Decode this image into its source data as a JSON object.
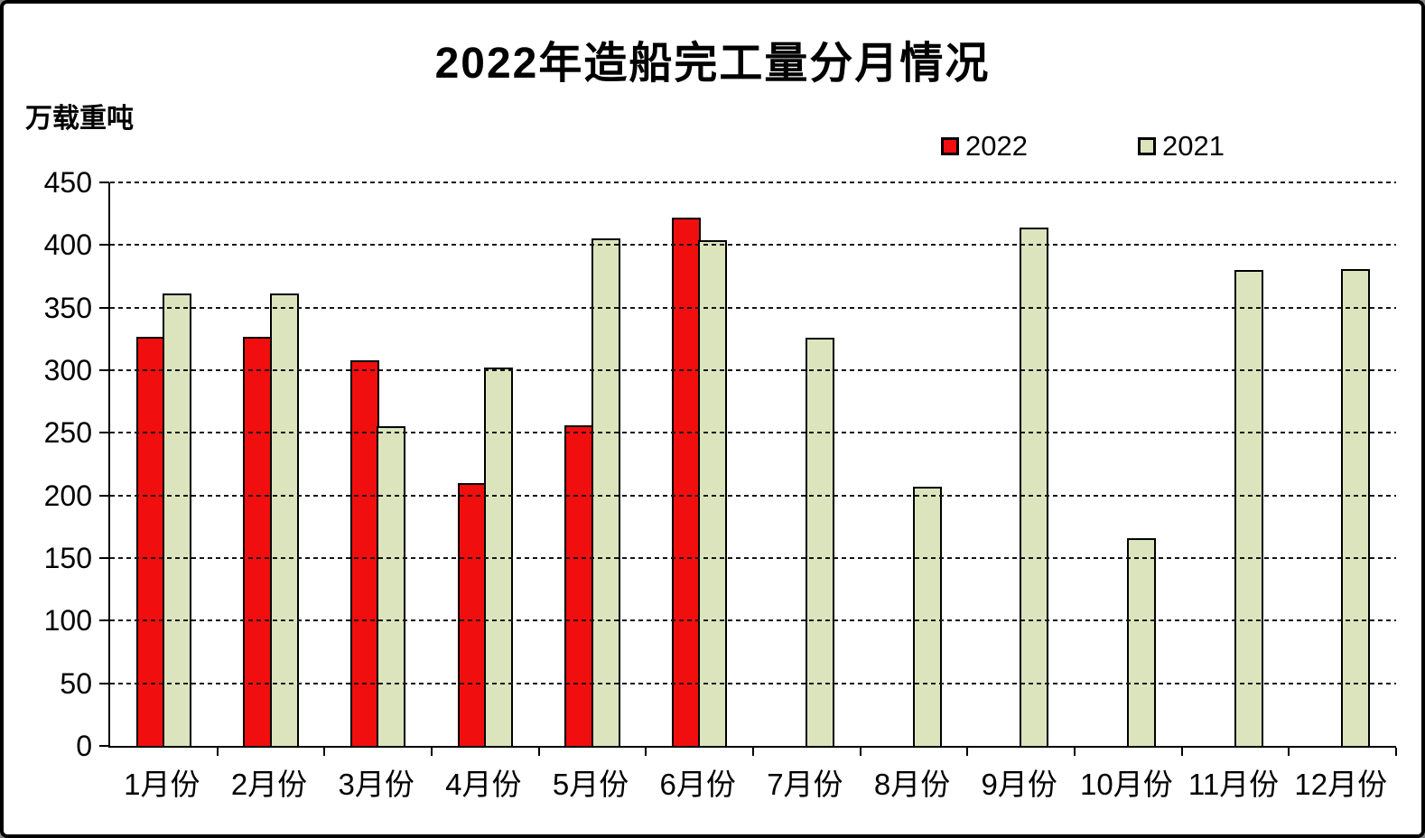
{
  "chart_data": {
    "type": "bar",
    "title": "2022年造船完工量分月情况",
    "unit_label": "万载重吨",
    "categories": [
      "1月份",
      "2月份",
      "3月份",
      "4月份",
      "5月份",
      "6月份",
      "7月份",
      "8月份",
      "9月份",
      "10月份",
      "11月份",
      "12月份"
    ],
    "series": [
      {
        "name": "2022",
        "color": "#f10e0e",
        "values": [
          327,
          327,
          308,
          210,
          256,
          422,
          null,
          null,
          null,
          null,
          null,
          null
        ]
      },
      {
        "name": "2021",
        "color": "#dce4bd",
        "values": [
          361,
          361,
          255,
          302,
          405,
          404,
          326,
          207,
          414,
          166,
          380,
          381
        ]
      }
    ],
    "ylabel": "",
    "xlabel": "",
    "ylim": [
      0,
      450
    ],
    "ytick_step": 50,
    "yticks": [
      450,
      400,
      350,
      300,
      250,
      200,
      150,
      100,
      50,
      0
    ],
    "grid": "horizontal-dashed",
    "legend_position": "top-right",
    "colors": {
      "axis": "#000000",
      "background": "#ffffff",
      "border": "#000000"
    }
  }
}
